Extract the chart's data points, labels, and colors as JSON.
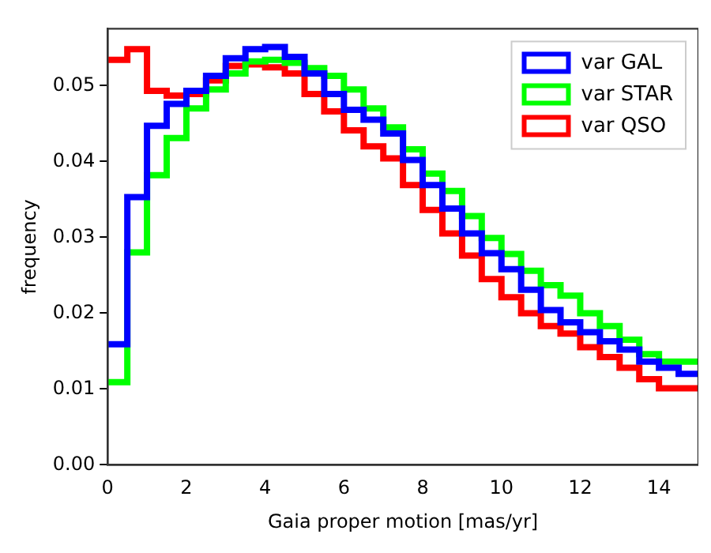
{
  "chart_data": {
    "type": "histogram",
    "xlabel": "Gaia proper motion [mas/yr]",
    "ylabel": "frequency",
    "bins": [
      0,
      0.5,
      1,
      1.5,
      2,
      2.5,
      3,
      3.5,
      4,
      4.5,
      5,
      5.5,
      6,
      6.5,
      7,
      7.5,
      8,
      8.5,
      9,
      9.5,
      10,
      10.5,
      11,
      11.5,
      12,
      12.5,
      13,
      13.5,
      14,
      14.5,
      15
    ],
    "series": [
      {
        "name": "var GAL",
        "color": "#0000ff",
        "values": [
          0.0159,
          0.0353,
          0.0447,
          0.0476,
          0.0493,
          0.0513,
          0.0536,
          0.0548,
          0.0551,
          0.0538,
          0.0516,
          0.0489,
          0.0468,
          0.0455,
          0.0437,
          0.0402,
          0.0369,
          0.0338,
          0.0305,
          0.0279,
          0.0258,
          0.0231,
          0.0204,
          0.0188,
          0.0175,
          0.0163,
          0.0152,
          0.0136,
          0.0128,
          0.012
        ]
      },
      {
        "name": "var STAR",
        "color": "#00ff00",
        "values": [
          0.0109,
          0.028,
          0.0382,
          0.0431,
          0.047,
          0.0495,
          0.0516,
          0.0532,
          0.0534,
          0.053,
          0.0523,
          0.0513,
          0.0495,
          0.047,
          0.0445,
          0.0416,
          0.0384,
          0.0361,
          0.0328,
          0.0299,
          0.0278,
          0.0256,
          0.0237,
          0.0223,
          0.02,
          0.0183,
          0.0165,
          0.0146,
          0.0136,
          0.0136
        ]
      },
      {
        "name": "var QSO",
        "color": "#ff0000",
        "values": [
          0.0534,
          0.0548,
          0.0493,
          0.0487,
          0.0489,
          0.0507,
          0.0526,
          0.0528,
          0.0524,
          0.0516,
          0.0489,
          0.0466,
          0.0441,
          0.042,
          0.0404,
          0.0369,
          0.0336,
          0.0305,
          0.0276,
          0.0245,
          0.0221,
          0.02,
          0.0183,
          0.0173,
          0.0155,
          0.0142,
          0.0128,
          0.0113,
          0.0101,
          0.0101
        ]
      }
    ],
    "xlim": [
      0,
      15
    ],
    "xticks": [
      0,
      2,
      4,
      6,
      8,
      10,
      12,
      14
    ],
    "ylim": [
      0,
      0.0575
    ],
    "yticks": [
      {
        "value": 0,
        "label": "0.00"
      },
      {
        "value": 0.01,
        "label": "0.01"
      },
      {
        "value": 0.02,
        "label": "0.02"
      },
      {
        "value": 0.03,
        "label": "0.03"
      },
      {
        "value": 0.04,
        "label": "0.04"
      },
      {
        "value": 0.05,
        "label": "0.05"
      }
    ],
    "grid": false,
    "legend": "top right"
  }
}
